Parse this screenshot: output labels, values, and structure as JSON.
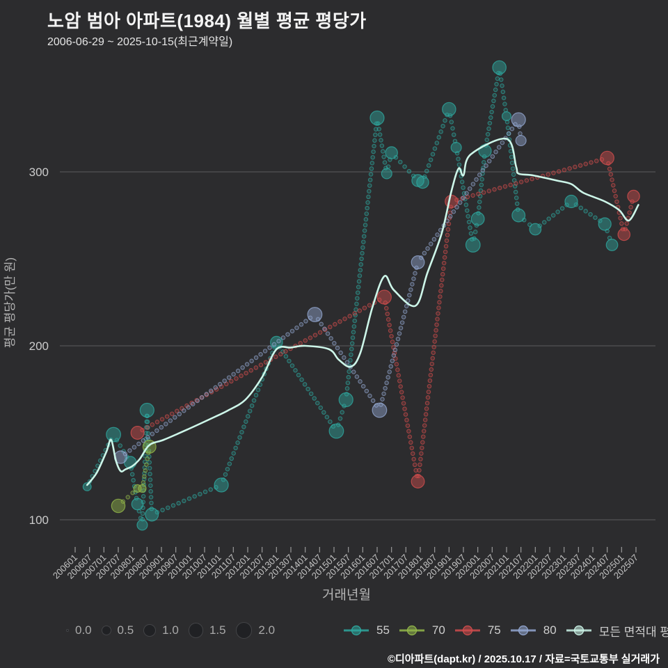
{
  "header": {
    "title": "노암 범아 아파트(1984) 월별 평균 평당가",
    "subtitle": "2006-06-29 ~ 2025-10-15(최근계약일)"
  },
  "footer": {
    "credit": "©디아파트(dapt.kr) / 2025.10.17 / 자료=국토교통부 실거래가"
  },
  "chart_data": {
    "type": "scatter",
    "title": "노암 범아 아파트(1984) 월별 평균 평당가",
    "xlabel": "거래년월",
    "ylabel": "평균 평당가(만 원)",
    "background": "#2c2c2e",
    "grid": true,
    "grid_color": "#666666",
    "text_color": "#c4c4c4",
    "y_ticks": [
      100,
      200,
      300
    ],
    "ylim": [
      85,
      375
    ],
    "x_ticks": [
      "200601",
      "200607",
      "200701",
      "200707",
      "200801",
      "200807",
      "200901",
      "200907",
      "201001",
      "201007",
      "201101",
      "201107",
      "201201",
      "201207",
      "201301",
      "201307",
      "201401",
      "201407",
      "201501",
      "201507",
      "201601",
      "201607",
      "201701",
      "201707",
      "201801",
      "201807",
      "201901",
      "201907",
      "202001",
      "202007",
      "202101",
      "202107",
      "202201",
      "202207",
      "202301",
      "202307",
      "202401",
      "202407",
      "202501",
      "202507"
    ],
    "size_legend": {
      "labels": [
        "0.0",
        "0.5",
        "1.0",
        "1.5",
        "2.0"
      ],
      "values": [
        0.0,
        0.5,
        1.0,
        1.5,
        2.0
      ]
    },
    "legend_position": "bottom",
    "series": [
      {
        "name": "55",
        "color": "#2ea89f",
        "style": "dotted-bubble",
        "points": [
          [
            200606,
            119,
            0.3
          ],
          [
            200705,
            149,
            1.4
          ],
          [
            200712,
            133,
            0.9
          ],
          [
            200803,
            109,
            0.8
          ],
          [
            200805,
            97,
            0.6
          ],
          [
            200807,
            163,
            1.3
          ],
          [
            200809,
            103,
            1.1
          ],
          [
            201102,
            120,
            1.3
          ],
          [
            201301,
            202,
            0.9
          ],
          [
            201502,
            151,
            1.4
          ],
          [
            201506,
            169,
            1.3
          ],
          [
            201607,
            331,
            1.3
          ],
          [
            201611,
            299,
            0.6
          ],
          [
            201701,
            311,
            0.9
          ],
          [
            201712,
            295,
            0.9
          ],
          [
            201802,
            294,
            0.9
          ],
          [
            201901,
            336,
            1.2
          ],
          [
            201904,
            314,
            0.6
          ],
          [
            201911,
            258,
            1.4
          ],
          [
            202001,
            273,
            1.1
          ],
          [
            202004,
            312,
            1.0
          ],
          [
            202010,
            360,
            1.2
          ],
          [
            202101,
            332,
            0.4
          ],
          [
            202106,
            275,
            1.1
          ],
          [
            202201,
            267,
            0.8
          ],
          [
            202304,
            283,
            1.0
          ],
          [
            202406,
            270,
            1.0
          ],
          [
            202409,
            258,
            0.8
          ]
        ]
      },
      {
        "name": "70",
        "color": "#93b84a",
        "style": "dotted-bubble",
        "points": [
          [
            200707,
            108,
            1.2
          ],
          [
            200803,
            118,
            0.25
          ],
          [
            200805,
            118,
            0.25
          ],
          [
            200808,
            142,
            1.1
          ]
        ]
      },
      {
        "name": "75",
        "color": "#d24d4d",
        "style": "dotted-bubble",
        "points": [
          [
            200803,
            150,
            1.1
          ],
          [
            201610,
            228,
            1.3
          ],
          [
            201712,
            122,
            1.1
          ],
          [
            201902,
            283,
            1.0
          ],
          [
            202407,
            308,
            1.2
          ],
          [
            202502,
            264,
            0.9
          ],
          [
            202506,
            286,
            0.9
          ]
        ]
      },
      {
        "name": "80",
        "color": "#93a7d1",
        "style": "dotted-bubble",
        "points": [
          [
            200708,
            136,
            1.0
          ],
          [
            201405,
            218,
            1.4
          ],
          [
            201608,
            163,
            1.4
          ],
          [
            201712,
            248,
            1.1
          ],
          [
            202106,
            330,
            1.3
          ],
          [
            202107,
            318,
            0.6
          ]
        ]
      },
      {
        "name": "모든 면적대 평균값",
        "color": "#cdf6e9",
        "style": "line",
        "points": [
          [
            200606,
            120
          ],
          [
            200610,
            127
          ],
          [
            200702,
            139
          ],
          [
            200704,
            146
          ],
          [
            200706,
            134
          ],
          [
            200708,
            128
          ],
          [
            200710,
            129
          ],
          [
            200801,
            131
          ],
          [
            200804,
            135
          ],
          [
            200808,
            143
          ],
          [
            200902,
            146
          ],
          [
            200912,
            152
          ],
          [
            201011,
            159
          ],
          [
            201105,
            163
          ],
          [
            201112,
            169
          ],
          [
            201207,
            182
          ],
          [
            201301,
            198
          ],
          [
            201307,
            199
          ],
          [
            201401,
            200
          ],
          [
            201411,
            198
          ],
          [
            201503,
            192
          ],
          [
            201508,
            188
          ],
          [
            201512,
            196
          ],
          [
            201605,
            222
          ],
          [
            201610,
            240
          ],
          [
            201702,
            232
          ],
          [
            201711,
            223
          ],
          [
            201804,
            242
          ],
          [
            201810,
            265
          ],
          [
            201902,
            289
          ],
          [
            201905,
            302
          ],
          [
            201907,
            298
          ],
          [
            201910,
            310
          ],
          [
            202101,
            319
          ],
          [
            202105,
            303
          ],
          [
            202106,
            299
          ],
          [
            202112,
            298
          ],
          [
            202210,
            295
          ],
          [
            202304,
            293
          ],
          [
            202309,
            288
          ],
          [
            202406,
            283
          ],
          [
            202412,
            278
          ],
          [
            202504,
            272
          ],
          [
            202508,
            281
          ]
        ]
      }
    ]
  }
}
